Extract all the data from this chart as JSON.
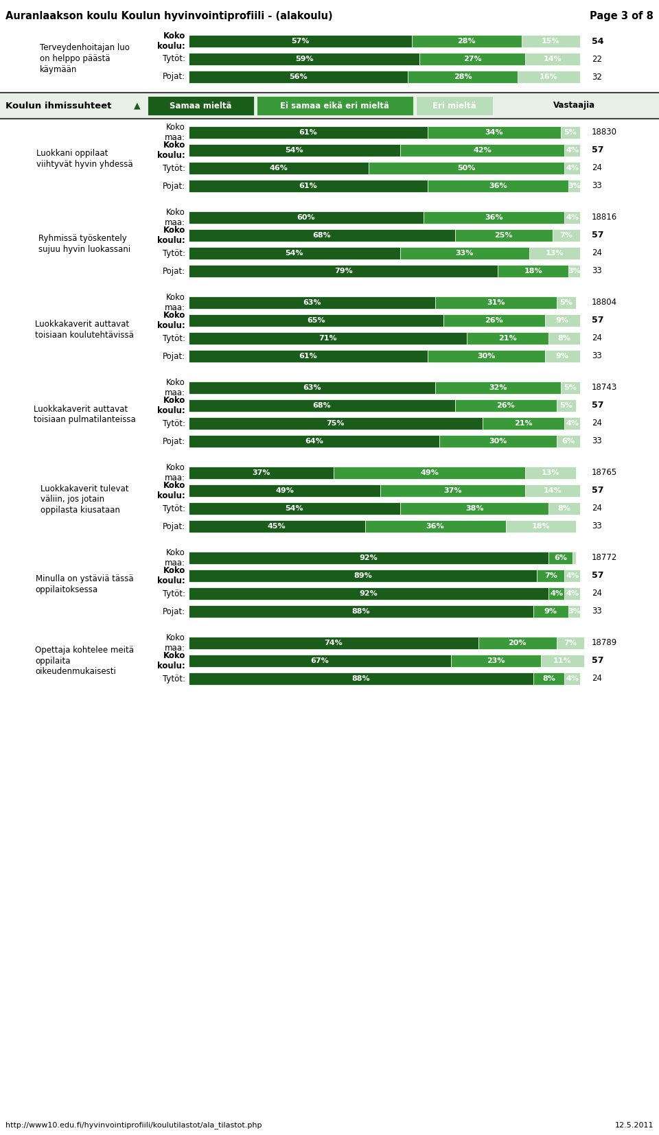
{
  "title": "Auranlaakson koulu Koulun hyvinvointiprofiili - (alakoulu)",
  "page": "Page 3 of 8",
  "footer_url": "http://www10.edu.fi/hyvinvointiprofiili/koulutilastot/ala_tilastot.php",
  "footer_date": "12.5.2011",
  "colors": {
    "dark_green": "#1a5c1a",
    "mid_green": "#3a9a3a",
    "light_green": "#b8ddb8",
    "header_bg": "#e8f0e8"
  },
  "top_section": {
    "question": "Terveydenhoitajan luo\non helppo päästä\nkäymään",
    "rows": [
      {
        "label": "Koko\nkoulu:",
        "bold": true,
        "values": [
          57,
          28,
          15
        ],
        "n": "54"
      },
      {
        "label": "Tytöt:",
        "bold": false,
        "values": [
          59,
          27,
          14
        ],
        "n": "22"
      },
      {
        "label": "Pojat:",
        "bold": false,
        "values": [
          56,
          28,
          16
        ],
        "n": "32"
      }
    ]
  },
  "header": {
    "section_title": "Koulun ihmissuhteet",
    "legend": [
      "Samaa mieltä",
      "Ei samaa eikä eri mieltä",
      "Eri mieltä",
      "Vastaajia"
    ]
  },
  "sections": [
    {
      "question": "Luokkani oppilaat\nviihtyvät hyvin yhdessä",
      "rows": [
        {
          "label": "Koko\nmaa:",
          "bold": false,
          "values": [
            61,
            34,
            5
          ],
          "n": "18830"
        },
        {
          "label": "Koko\nkoulu:",
          "bold": true,
          "values": [
            54,
            42,
            4
          ],
          "n": "57"
        },
        {
          "label": "Tytöt:",
          "bold": false,
          "values": [
            46,
            50,
            4
          ],
          "n": "24"
        },
        {
          "label": "Pojat:",
          "bold": false,
          "values": [
            61,
            36,
            3
          ],
          "n": "33"
        }
      ]
    },
    {
      "question": "Ryhmissä työskentely\nsujuu hyvin luokassani",
      "rows": [
        {
          "label": "Koko\nmaa:",
          "bold": false,
          "values": [
            60,
            36,
            4
          ],
          "n": "18816"
        },
        {
          "label": "Koko\nkoulu:",
          "bold": true,
          "values": [
            68,
            25,
            7
          ],
          "n": "57"
        },
        {
          "label": "Tytöt:",
          "bold": false,
          "values": [
            54,
            33,
            13
          ],
          "n": "24"
        },
        {
          "label": "Pojat:",
          "bold": false,
          "values": [
            79,
            18,
            3
          ],
          "n": "33"
        }
      ]
    },
    {
      "question": "Luokkakaverit auttavat\ntoisiaan koulutehtävissä",
      "rows": [
        {
          "label": "Koko\nmaa:",
          "bold": false,
          "values": [
            63,
            31,
            5
          ],
          "n": "18804"
        },
        {
          "label": "Koko\nkoulu:",
          "bold": true,
          "values": [
            65,
            26,
            9
          ],
          "n": "57"
        },
        {
          "label": "Tytöt:",
          "bold": false,
          "values": [
            71,
            21,
            8
          ],
          "n": "24"
        },
        {
          "label": "Pojat:",
          "bold": false,
          "values": [
            61,
            30,
            9
          ],
          "n": "33"
        }
      ]
    },
    {
      "question": "Luokkakaverit auttavat\ntoisiaan pulmatilanteissa",
      "rows": [
        {
          "label": "Koko\nmaa:",
          "bold": false,
          "values": [
            63,
            32,
            5
          ],
          "n": "18743"
        },
        {
          "label": "Koko\nkoulu:",
          "bold": true,
          "values": [
            68,
            26,
            5
          ],
          "n": "57"
        },
        {
          "label": "Tytöt:",
          "bold": false,
          "values": [
            75,
            21,
            4
          ],
          "n": "24"
        },
        {
          "label": "Pojat:",
          "bold": false,
          "values": [
            64,
            30,
            6
          ],
          "n": "33"
        }
      ]
    },
    {
      "question": "Luokkakaverit tulevat\nväliin, jos jotain\noppilasta kiusataan",
      "rows": [
        {
          "label": "Koko\nmaa:",
          "bold": false,
          "values": [
            37,
            49,
            13
          ],
          "n": "18765"
        },
        {
          "label": "Koko\nkoulu:",
          "bold": true,
          "values": [
            49,
            37,
            14
          ],
          "n": "57"
        },
        {
          "label": "Tytöt:",
          "bold": false,
          "values": [
            54,
            38,
            8
          ],
          "n": "24"
        },
        {
          "label": "Pojat:",
          "bold": false,
          "values": [
            45,
            36,
            18
          ],
          "n": "33"
        }
      ]
    },
    {
      "question": "Minulla on ystäviä tässä\noppilaitoksessa",
      "rows": [
        {
          "label": "Koko\nmaa:",
          "bold": false,
          "values": [
            92,
            6,
            1
          ],
          "n": "18772"
        },
        {
          "label": "Koko\nkoulu:",
          "bold": true,
          "values": [
            89,
            7,
            4
          ],
          "n": "57"
        },
        {
          "label": "Tytöt:",
          "bold": false,
          "values": [
            92,
            4,
            4
          ],
          "n": "24"
        },
        {
          "label": "Pojat:",
          "bold": false,
          "values": [
            88,
            9,
            3
          ],
          "n": "33"
        }
      ]
    },
    {
      "question": "Opettaja kohtelee meitä\noppilaita\noikeudenmukaisesti",
      "rows": [
        {
          "label": "Koko\nmaa:",
          "bold": false,
          "values": [
            74,
            20,
            7
          ],
          "n": "18789"
        },
        {
          "label": "Koko\nkoulu:",
          "bold": true,
          "values": [
            67,
            23,
            11
          ],
          "n": "57"
        },
        {
          "label": "Tytöt:",
          "bold": false,
          "values": [
            88,
            8,
            4
          ],
          "n": "24"
        }
      ]
    }
  ]
}
